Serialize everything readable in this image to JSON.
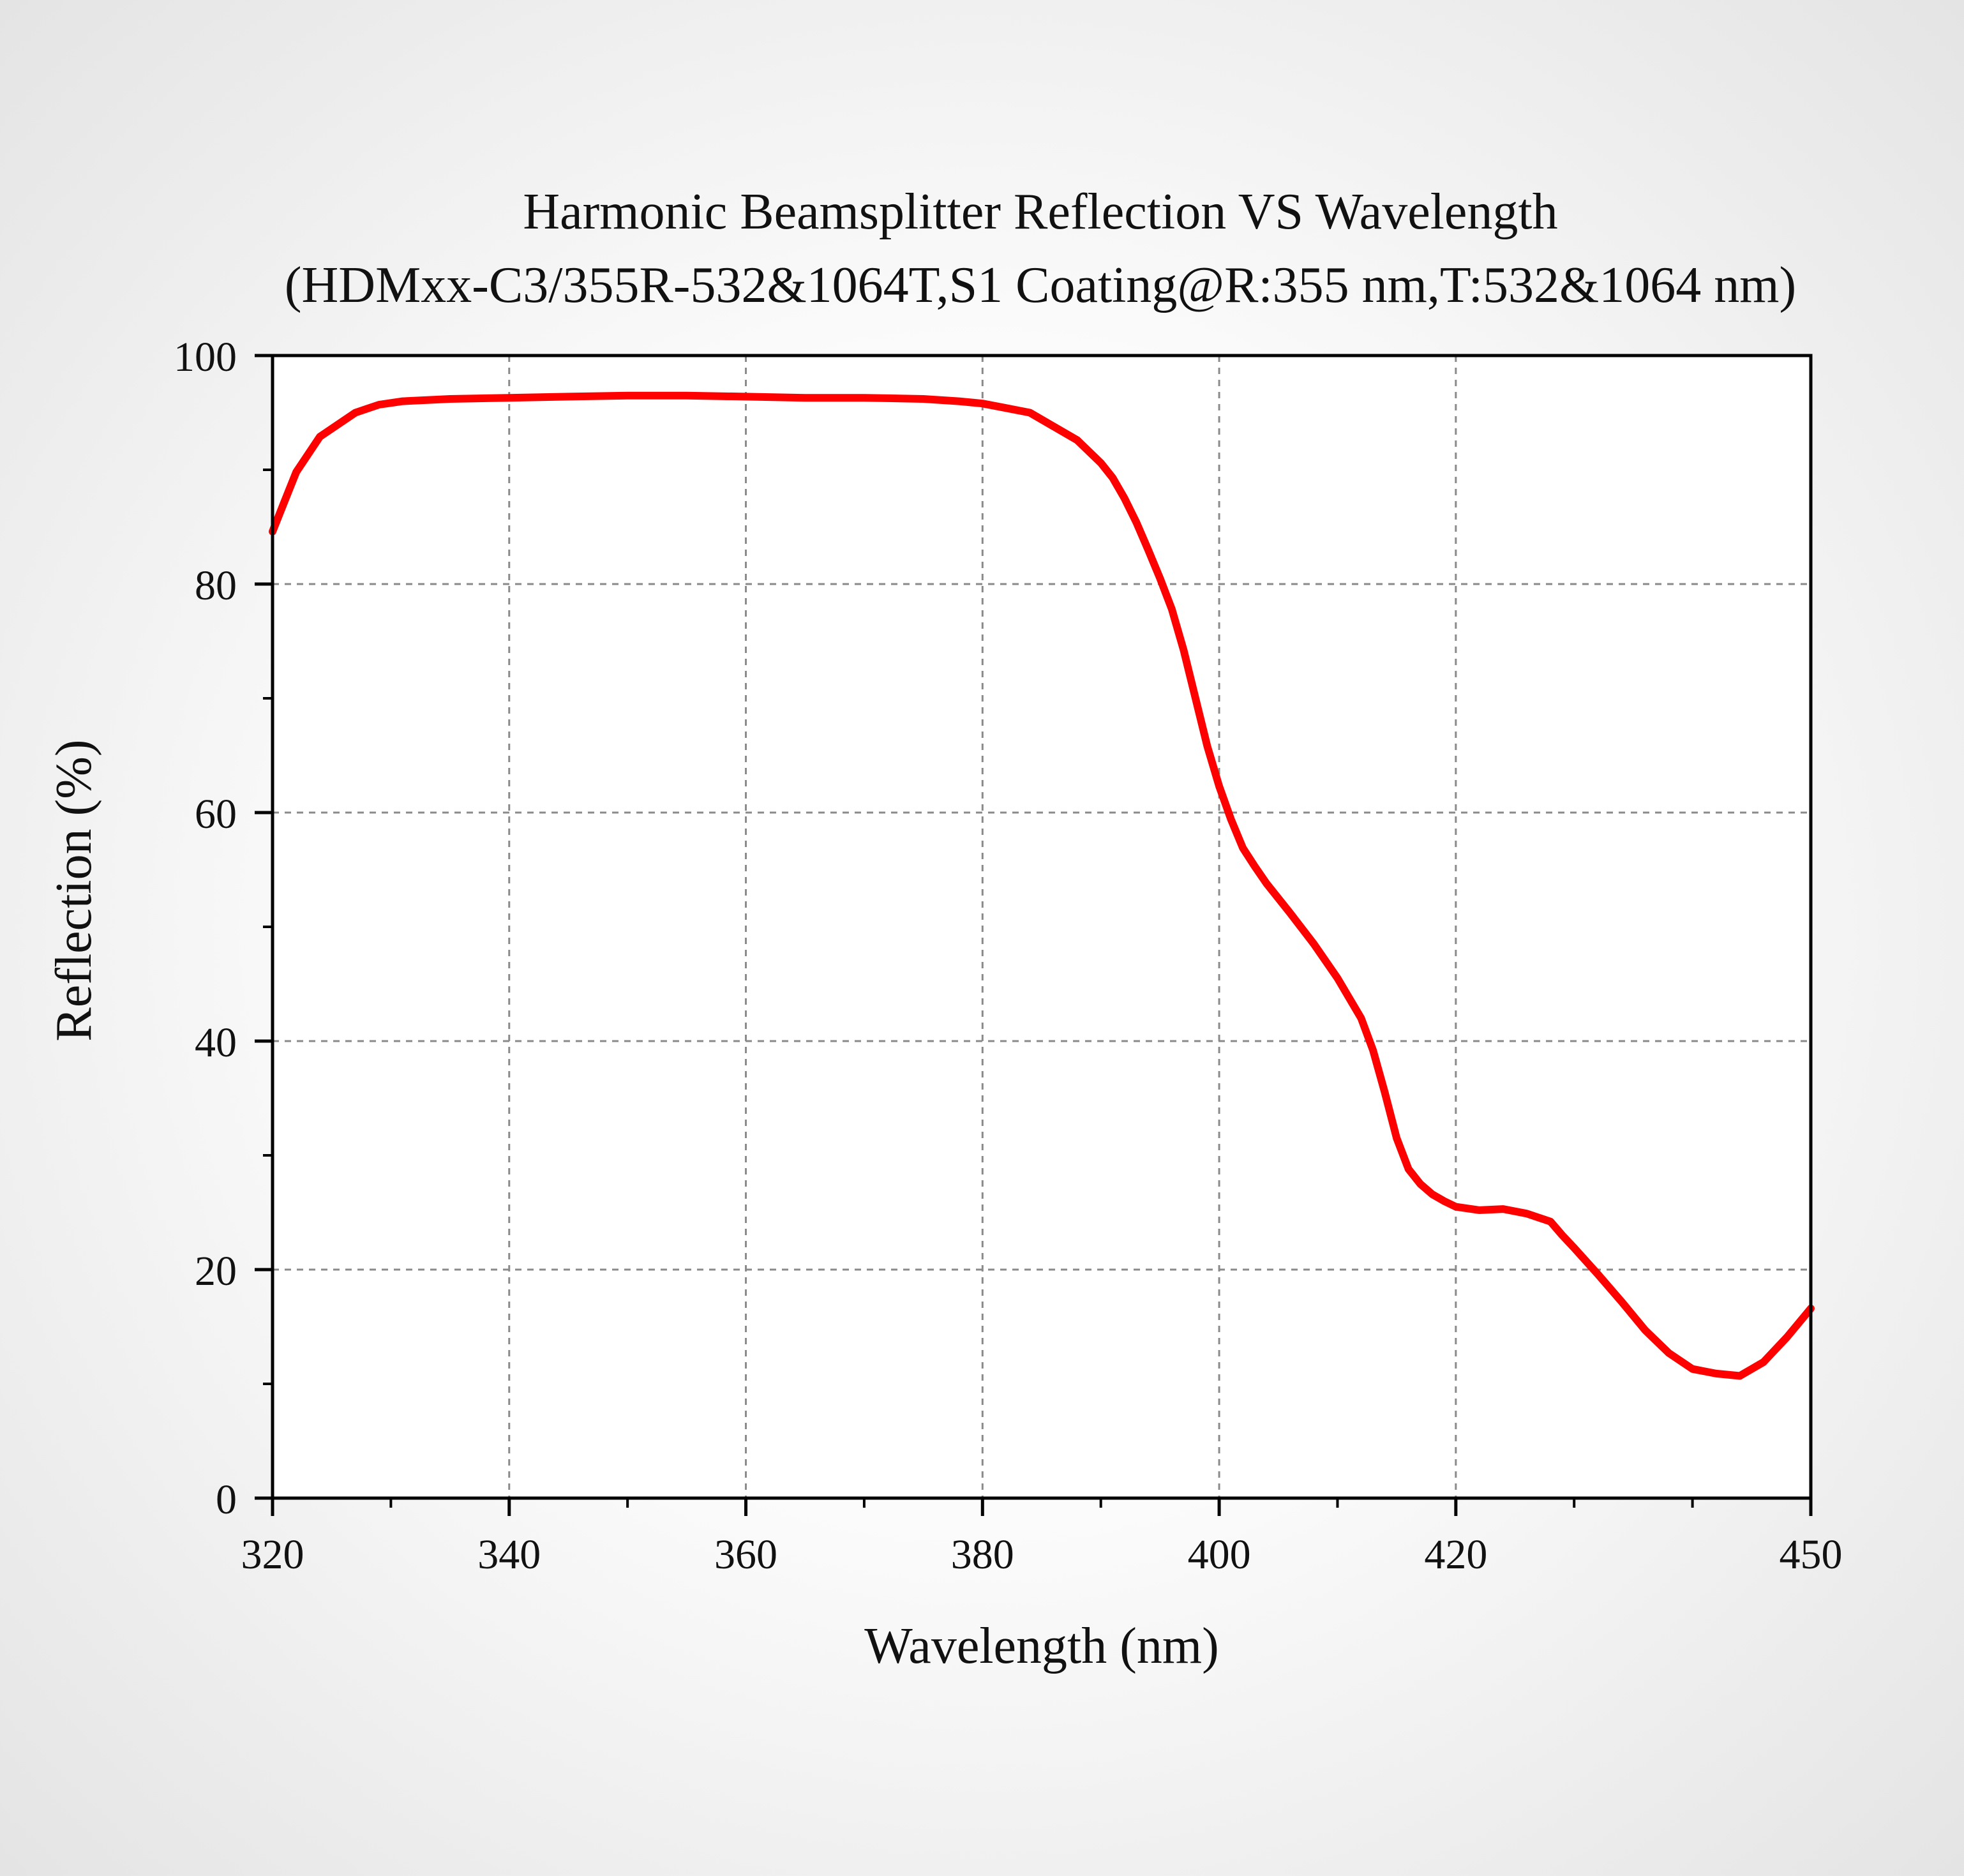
{
  "chart_data": {
    "type": "line",
    "title": "Harmonic Beamsplitter Reflection VS Wavelength",
    "subtitle": "(HDMxx-C3/355R-532&1064T,S1 Coating@R:355 nm,T:532&1064 nm)",
    "xlabel": "Wavelength (nm)",
    "ylabel": "Reflection (%)",
    "xlim": [
      320,
      450
    ],
    "ylim": [
      0,
      100
    ],
    "x_ticks": [
      320,
      340,
      360,
      380,
      400,
      420,
      450
    ],
    "x_minor_ticks": [
      330,
      350,
      370,
      390,
      410,
      430,
      440
    ],
    "y_ticks": [
      0,
      20,
      40,
      60,
      80,
      100
    ],
    "y_minor_ticks": [
      10,
      30,
      50,
      70,
      90
    ],
    "x_grid": [
      340,
      360,
      380,
      400,
      420
    ],
    "y_grid": [
      20,
      40,
      60,
      80
    ],
    "grid": true,
    "line_color": "#ff0000",
    "series": [
      {
        "x": [
          320,
          321,
          322,
          324,
          327,
          329,
          331,
          335,
          340,
          345,
          350,
          355,
          360,
          365,
          370,
          375,
          378,
          380,
          382,
          384,
          386,
          388,
          390,
          391,
          392,
          393,
          394,
          395,
          396,
          397,
          398,
          399,
          400,
          401,
          402,
          403,
          404,
          406,
          408,
          410,
          412,
          413,
          414,
          415,
          416,
          417,
          418,
          419,
          420,
          422,
          424,
          426,
          428,
          429,
          430,
          432,
          434,
          436,
          438,
          440,
          442,
          444,
          446,
          448,
          450
        ],
        "y": [
          84.6,
          87.2,
          89.8,
          92.9,
          95.0,
          95.7,
          96.0,
          96.2,
          96.3,
          96.4,
          96.5,
          96.5,
          96.4,
          96.3,
          96.3,
          96.2,
          96.0,
          95.8,
          95.4,
          95.0,
          93.8,
          92.6,
          90.6,
          89.3,
          87.5,
          85.4,
          83.0,
          80.5,
          77.8,
          74.2,
          70.0,
          65.8,
          62.3,
          59.4,
          56.9,
          55.3,
          53.8,
          51.2,
          48.5,
          45.5,
          42.0,
          39.2,
          35.5,
          31.5,
          28.8,
          27.5,
          26.6,
          26.0,
          25.5,
          25.2,
          25.3,
          24.9,
          24.2,
          23.0,
          21.9,
          19.6,
          17.2,
          14.7,
          12.7,
          11.3,
          10.9,
          10.7,
          11.9,
          14.1,
          16.6
        ]
      }
    ]
  }
}
